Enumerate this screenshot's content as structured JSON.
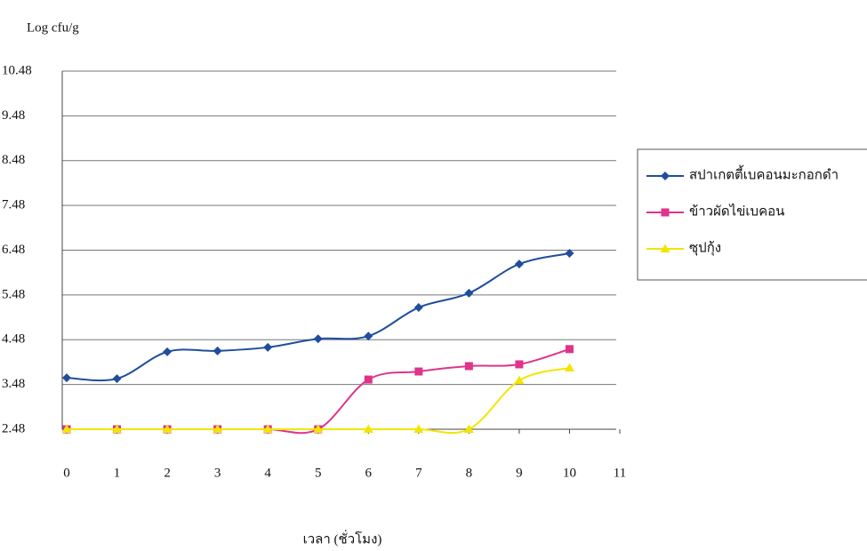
{
  "chart_data": {
    "type": "line",
    "y_label": "Log cfu/g",
    "x_label": "เวลา (ชั่วโมง)",
    "x": [
      0,
      1,
      2,
      3,
      4,
      5,
      6,
      7,
      8,
      9,
      10
    ],
    "series": [
      {
        "name": "สปาเกตตี้เบคอนมะกอกดำ",
        "color": "#1f4e9c",
        "marker": "diamond",
        "values": [
          3.63,
          3.61,
          4.21,
          4.23,
          4.31,
          4.5,
          4.56,
          5.2,
          5.52,
          6.17,
          6.41
        ]
      },
      {
        "name": "ข้าวผัดไข่เบคอน",
        "color": "#e0338a",
        "marker": "square",
        "values": [
          2.48,
          2.48,
          2.48,
          2.48,
          2.48,
          2.48,
          3.59,
          3.77,
          3.89,
          3.93,
          4.27
        ]
      },
      {
        "name": "ซุปกุ้ง",
        "color": "#f2e600",
        "marker": "triangle",
        "values": [
          2.48,
          2.48,
          2.48,
          2.48,
          2.48,
          2.48,
          2.48,
          2.48,
          2.48,
          3.57,
          3.85
        ]
      }
    ],
    "xlim": [
      0,
      11
    ],
    "xticks": [
      0,
      1,
      2,
      3,
      4,
      5,
      6,
      7,
      8,
      9,
      10,
      11
    ],
    "ylim": [
      2.48,
      10.48
    ],
    "yticks": [
      2.48,
      3.48,
      4.48,
      5.48,
      6.48,
      7.48,
      8.48,
      9.48,
      10.48
    ],
    "grid": true,
    "legend": "right"
  }
}
